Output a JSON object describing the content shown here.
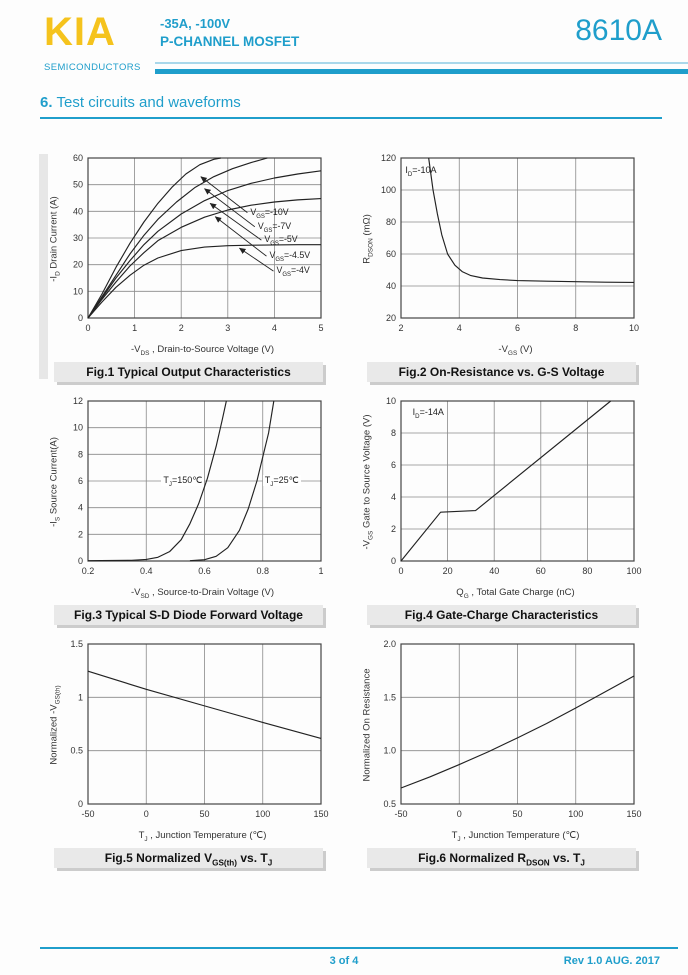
{
  "header": {
    "logo": "KIA",
    "logo_sub": "SEMICONDUCTORS",
    "rating_line": "-35A, -100V",
    "type_line": "P-CHANNEL MOSFET",
    "part_number": "8610A"
  },
  "section": {
    "number": "6.",
    "title": "Test circuits and waveforms"
  },
  "footer": {
    "page": "3 of 4",
    "rev": "Rev 1.0 AUG. 2017"
  },
  "colors": {
    "accent": "#1f9ecb",
    "accent_light": "#a9d7ea",
    "logo_gold": "#f5c31d",
    "grid": "#8a8a8a",
    "axis": "#444444",
    "curve": "#222222",
    "tick_text": "#333333"
  },
  "chart_data": [
    {
      "type": "line",
      "caption": "Fig.1 Typical Output Characteristics",
      "xlabel": "-V~DS~ , Drain-to-Source Voltage (V)",
      "ylabel": "-I~D~ Drain Current (A)",
      "xlim": [
        0,
        5
      ],
      "ylim": [
        0,
        60
      ],
      "xticks": [
        0,
        1,
        2,
        3,
        4,
        5
      ],
      "xtick_labels": [
        "0",
        "1",
        "2",
        "3",
        "4",
        "5"
      ],
      "yticks": [
        0,
        10,
        20,
        30,
        40,
        50,
        60
      ],
      "ytick_labels": [
        "0",
        "10",
        "20",
        "30",
        "40",
        "50",
        "60"
      ],
      "grid": true,
      "series": [
        {
          "name": "VGS=-10V",
          "points": [
            [
              0,
              0
            ],
            [
              0.3,
              9
            ],
            [
              0.6,
              19
            ],
            [
              0.9,
              28
            ],
            [
              1.2,
              36
            ],
            [
              1.5,
              43
            ],
            [
              1.8,
              49
            ],
            [
              2.1,
              54
            ],
            [
              2.4,
              57.5
            ],
            [
              2.7,
              59.5
            ],
            [
              2.85,
              60
            ]
          ]
        },
        {
          "name": "VGS=-7V",
          "points": [
            [
              0,
              0
            ],
            [
              0.3,
              8
            ],
            [
              0.6,
              16
            ],
            [
              0.9,
              24
            ],
            [
              1.2,
              31
            ],
            [
              1.5,
              37
            ],
            [
              1.9,
              43.5
            ],
            [
              2.3,
              49
            ],
            [
              2.7,
              53
            ],
            [
              3.1,
              56
            ],
            [
              3.5,
              58.3
            ],
            [
              3.85,
              60
            ]
          ]
        },
        {
          "name": "VGS=-5V",
          "points": [
            [
              0,
              0
            ],
            [
              0.3,
              7.5
            ],
            [
              0.6,
              15
            ],
            [
              0.9,
              21.5
            ],
            [
              1.2,
              27.5
            ],
            [
              1.5,
              32.5
            ],
            [
              2,
              39
            ],
            [
              2.5,
              44
            ],
            [
              3,
              47.8
            ],
            [
              3.5,
              50.5
            ],
            [
              4,
              52.5
            ],
            [
              4.5,
              54
            ],
            [
              5,
              55.2
            ]
          ]
        },
        {
          "name": "VGS=-4.5V",
          "points": [
            [
              0,
              0
            ],
            [
              0.3,
              7
            ],
            [
              0.6,
              13.5
            ],
            [
              0.9,
              19.5
            ],
            [
              1.2,
              24.5
            ],
            [
              1.5,
              29
            ],
            [
              2,
              34
            ],
            [
              2.5,
              37.8
            ],
            [
              3,
              40.5
            ],
            [
              3.5,
              42.3
            ],
            [
              4,
              43.5
            ],
            [
              4.5,
              44.3
            ],
            [
              5,
              44.8
            ]
          ]
        },
        {
          "name": "VGS=-4V",
          "points": [
            [
              0,
              0
            ],
            [
              0.3,
              6
            ],
            [
              0.6,
              11.5
            ],
            [
              0.9,
              16
            ],
            [
              1.2,
              19.8
            ],
            [
              1.5,
              22.5
            ],
            [
              2,
              25.3
            ],
            [
              2.5,
              26.6
            ],
            [
              3,
              27.1
            ],
            [
              3.5,
              27.3
            ],
            [
              4,
              27.4
            ],
            [
              4.5,
              27.5
            ],
            [
              5,
              27.5
            ]
          ]
        }
      ],
      "labels": [
        {
          "text": "V~GS~=-10V",
          "x": 3.42,
          "y": 39.5,
          "tip": [
            2.42,
            53
          ]
        },
        {
          "text": "V~GS~=-7V",
          "x": 3.58,
          "y": 34.2,
          "tip": [
            2.5,
            48.5
          ]
        },
        {
          "text": "V~GS~=-5V",
          "x": 3.72,
          "y": 29.2,
          "tip": [
            2.62,
            43
          ]
        },
        {
          "text": "V~GS~=-4.5V",
          "x": 3.83,
          "y": 23.2,
          "tip": [
            2.73,
            38
          ]
        },
        {
          "text": "V~GS~=-4V",
          "x": 3.98,
          "y": 17.6,
          "tip": [
            3.25,
            26.2
          ]
        }
      ],
      "annotations": []
    },
    {
      "type": "line",
      "caption": "Fig.2 On-Resistance vs. G-S Voltage",
      "xlabel": "-V~GS~ (V)",
      "ylabel": "R~DSON~ (mΩ)",
      "xlim": [
        2,
        10
      ],
      "ylim": [
        20,
        120
      ],
      "xticks": [
        2,
        4,
        6,
        8,
        10
      ],
      "xtick_labels": [
        "2",
        "4",
        "6",
        "8",
        "10"
      ],
      "yticks": [
        20,
        40,
        60,
        80,
        100,
        120
      ],
      "ytick_labels": [
        "20",
        "40",
        "60",
        "80",
        "100",
        "120"
      ],
      "grid": true,
      "series": [
        {
          "name": "ID=-10A",
          "points": [
            [
              2.95,
              120
            ],
            [
              3.1,
              100
            ],
            [
              3.25,
              85
            ],
            [
              3.4,
              72
            ],
            [
              3.6,
              60
            ],
            [
              3.85,
              53
            ],
            [
              4.1,
              49
            ],
            [
              4.4,
              46.5
            ],
            [
              4.8,
              45
            ],
            [
              5.4,
              44
            ],
            [
              6,
              43.4
            ],
            [
              7,
              43
            ],
            [
              8,
              42.7
            ],
            [
              9,
              42.4
            ],
            [
              10,
              42.2
            ]
          ]
        }
      ],
      "labels": [],
      "annotations": [
        {
          "text": "I~D~=-10A",
          "x": 2.15,
          "y": 112,
          "align": "left",
          "bg": false
        }
      ]
    },
    {
      "type": "line",
      "caption": "Fig.3 Typical S-D Diode Forward Voltage",
      "xlabel": "-V~SD~ , Source-to-Drain Voltage (V)",
      "ylabel": "-I~S~ Source Current(A)",
      "xlim": [
        0.2,
        1
      ],
      "ylim": [
        0,
        12
      ],
      "xticks": [
        0.2,
        0.4,
        0.6,
        0.8,
        1
      ],
      "xtick_labels": [
        "0.2",
        "0.4",
        "0.6",
        "0.8",
        "1"
      ],
      "yticks": [
        0,
        2,
        4,
        6,
        8,
        10,
        12
      ],
      "ytick_labels": [
        "0",
        "2",
        "4",
        "6",
        "8",
        "10",
        "12"
      ],
      "grid": true,
      "series": [
        {
          "name": "TJ=150C",
          "points": [
            [
              0.2,
              0.02
            ],
            [
              0.35,
              0.05
            ],
            [
              0.4,
              0.12
            ],
            [
              0.44,
              0.28
            ],
            [
              0.48,
              0.7
            ],
            [
              0.52,
              1.6
            ],
            [
              0.55,
              2.8
            ],
            [
              0.58,
              4.3
            ],
            [
              0.61,
              6.2
            ],
            [
              0.64,
              8.6
            ],
            [
              0.66,
              10.5
            ],
            [
              0.675,
              12
            ]
          ]
        },
        {
          "name": "TJ=25C",
          "points": [
            [
              0.55,
              0.02
            ],
            [
              0.6,
              0.1
            ],
            [
              0.64,
              0.35
            ],
            [
              0.68,
              1.0
            ],
            [
              0.72,
              2.3
            ],
            [
              0.75,
              3.9
            ],
            [
              0.78,
              6.0
            ],
            [
              0.8,
              7.8
            ],
            [
              0.82,
              9.6
            ],
            [
              0.838,
              12
            ]
          ]
        }
      ],
      "labels": [],
      "annotations": [
        {
          "text": "T~J~=150℃",
          "x": 0.452,
          "y": 6,
          "align": "left",
          "bg": true
        },
        {
          "text": "T~J~=25℃",
          "x": 0.8,
          "y": 6,
          "align": "left",
          "bg": true
        }
      ]
    },
    {
      "type": "line",
      "caption": "Fig.4 Gate-Charge Characteristics",
      "xlabel": "Q~G~ , Total Gate Charge (nC)",
      "ylabel": "-V~GS~  Gate to Source Voltage (V)",
      "xlim": [
        0,
        100
      ],
      "ylim": [
        0,
        10
      ],
      "xticks": [
        0,
        20,
        40,
        60,
        80,
        100
      ],
      "xtick_labels": [
        "0",
        "20",
        "40",
        "60",
        "80",
        "100"
      ],
      "yticks": [
        0,
        2,
        4,
        6,
        8,
        10
      ],
      "ytick_labels": [
        "0",
        "2",
        "4",
        "6",
        "8",
        "10"
      ],
      "grid": true,
      "series": [
        {
          "name": "ID=-14A",
          "points": [
            [
              0,
              0
            ],
            [
              17,
              3.05
            ],
            [
              32,
              3.15
            ],
            [
              90,
              10
            ]
          ]
        }
      ],
      "labels": [],
      "annotations": [
        {
          "text": "I~D~=-14A",
          "x": 5,
          "y": 9.25,
          "align": "left",
          "bg": false
        }
      ]
    },
    {
      "type": "line",
      "caption": "Fig.5 Normalized V~GS(th)~ vs. T~J~",
      "xlabel": "T~J~ , Junction Temperature (℃)",
      "ylabel": "Normalized -V~GS(th)~",
      "xlim": [
        -50,
        150
      ],
      "ylim": [
        0,
        1.5
      ],
      "xticks": [
        -50,
        0,
        50,
        100,
        150
      ],
      "xtick_labels": [
        "-50",
        "0",
        "50",
        "100",
        "150"
      ],
      "yticks": [
        0,
        0.5,
        1,
        1.5
      ],
      "ytick_labels": [
        "0",
        "0.5",
        "1",
        "1.5"
      ],
      "grid": true,
      "series": [
        {
          "name": "normalized VGS(th)",
          "points": [
            [
              -50,
              1.245
            ],
            [
              0,
              1.075
            ],
            [
              50,
              0.92
            ],
            [
              100,
              0.765
            ],
            [
              150,
              0.615
            ]
          ]
        }
      ],
      "labels": [],
      "annotations": []
    },
    {
      "type": "line",
      "caption": "Fig.6 Normalized R~DSON~ vs. T~J~",
      "xlabel": "T~J~ , Junction Temperature (℃)",
      "ylabel": "Normalized On Resistance",
      "xlim": [
        -50,
        150
      ],
      "ylim": [
        0.5,
        2.0
      ],
      "xticks": [
        -50,
        0,
        50,
        100,
        150
      ],
      "xtick_labels": [
        "-50",
        "0",
        "50",
        "100",
        "150"
      ],
      "yticks": [
        0.5,
        1.0,
        1.5,
        2.0
      ],
      "ytick_labels": [
        "0.5",
        "1.0",
        "1.5",
        "2.0"
      ],
      "grid": true,
      "series": [
        {
          "name": "normalized RDSON",
          "points": [
            [
              -50,
              0.65
            ],
            [
              -25,
              0.755
            ],
            [
              0,
              0.87
            ],
            [
              25,
              0.99
            ],
            [
              50,
              1.12
            ],
            [
              75,
              1.255
            ],
            [
              100,
              1.4
            ],
            [
              125,
              1.55
            ],
            [
              150,
              1.7
            ]
          ]
        }
      ],
      "labels": [],
      "annotations": []
    }
  ]
}
